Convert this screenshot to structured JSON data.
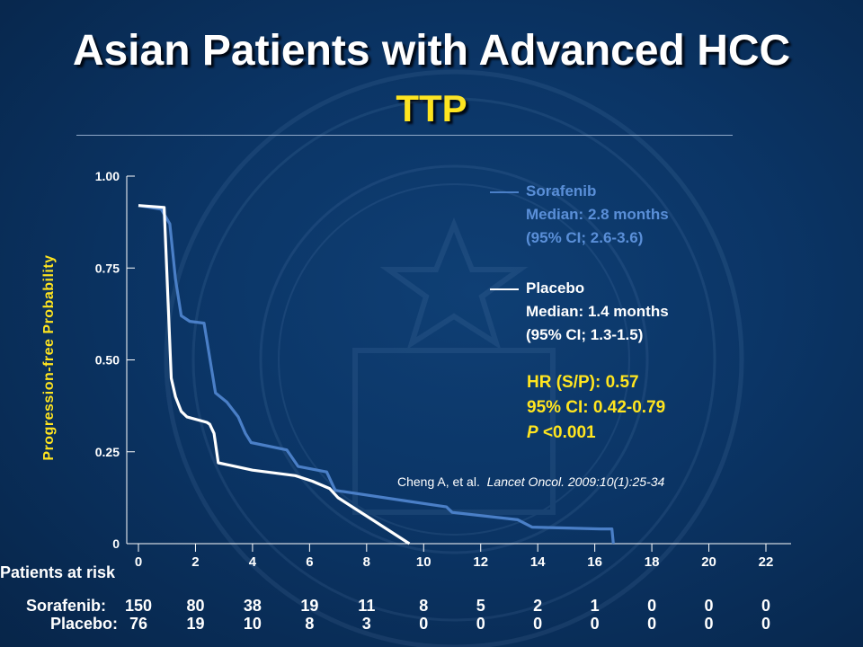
{
  "header": {
    "title": "Asian Patients with Advanced HCC",
    "subtitle": "TTP"
  },
  "legend": {
    "sorafenib": {
      "name": "Sorafenib",
      "median": "Median: 2.8 months",
      "ci": "(95% CI; 2.6-3.6)",
      "color": "#4a7fc7"
    },
    "placebo": {
      "name": "Placebo",
      "median": "Median: 1.4 months",
      "ci": "(95% CI; 1.3-1.5)",
      "color": "#ffffff"
    }
  },
  "stats": {
    "hr": "HR (S/P): 0.57",
    "ci": "95% CI: 0.42-0.79",
    "p_italic": "P",
    "p_rest": " <0.001"
  },
  "citation": {
    "authors": "Cheng A, et al.",
    "journal": "Lancet Oncol. 2009:10(1):25-34"
  },
  "risk_table": {
    "title": "Patients at risk",
    "rows": [
      {
        "label": "Sorafenib:",
        "values": [
          "150",
          "80",
          "38",
          "19",
          "11",
          "8",
          "5",
          "2",
          "1",
          "0",
          "0",
          "0"
        ]
      },
      {
        "label": "Placebo:",
        "values": [
          "76",
          "19",
          "10",
          "8",
          "3",
          "0",
          "0",
          "0",
          "0",
          "0",
          "0",
          "0"
        ]
      }
    ]
  },
  "chart_data": {
    "type": "line",
    "title": "TTP",
    "xlabel": "",
    "ylabel": "Progression-free Probability",
    "xlim": [
      0,
      22
    ],
    "ylim": [
      0,
      1
    ],
    "x_ticks": [
      "0",
      "2",
      "4",
      "6",
      "8",
      "10",
      "12",
      "14",
      "16",
      "18",
      "20",
      "22"
    ],
    "y_ticks": [
      "0",
      "0.25",
      "0.50",
      "0.75",
      "1.00"
    ],
    "grid": false,
    "series": [
      {
        "name": "Sorafenib",
        "color": "#4a7fc7",
        "points": [
          [
            0,
            0.92
          ],
          [
            0.8,
            0.91
          ],
          [
            1.1,
            0.87
          ],
          [
            1.3,
            0.72
          ],
          [
            1.5,
            0.62
          ],
          [
            1.8,
            0.605
          ],
          [
            2.3,
            0.6
          ],
          [
            2.7,
            0.41
          ],
          [
            3.1,
            0.385
          ],
          [
            3.5,
            0.345
          ],
          [
            3.75,
            0.3
          ],
          [
            3.95,
            0.275
          ],
          [
            5.2,
            0.255
          ],
          [
            5.6,
            0.21
          ],
          [
            6.6,
            0.195
          ],
          [
            6.9,
            0.145
          ],
          [
            9.5,
            0.115
          ],
          [
            10.8,
            0.1
          ],
          [
            11.0,
            0.085
          ],
          [
            13.3,
            0.065
          ],
          [
            13.8,
            0.045
          ],
          [
            16.2,
            0.04
          ],
          [
            16.6,
            0.04
          ],
          [
            16.65,
            0.0
          ]
        ]
      },
      {
        "name": "Placebo",
        "color": "#ffffff",
        "points": [
          [
            0,
            0.92
          ],
          [
            0.9,
            0.915
          ],
          [
            1.15,
            0.45
          ],
          [
            1.3,
            0.4
          ],
          [
            1.5,
            0.36
          ],
          [
            1.7,
            0.345
          ],
          [
            2.4,
            0.33
          ],
          [
            2.5,
            0.325
          ],
          [
            2.65,
            0.3
          ],
          [
            2.8,
            0.22
          ],
          [
            4.0,
            0.2
          ],
          [
            5.5,
            0.185
          ],
          [
            6.1,
            0.17
          ],
          [
            6.7,
            0.15
          ],
          [
            7.0,
            0.125
          ],
          [
            8.2,
            0.065
          ],
          [
            9.5,
            0.0
          ]
        ]
      }
    ]
  }
}
